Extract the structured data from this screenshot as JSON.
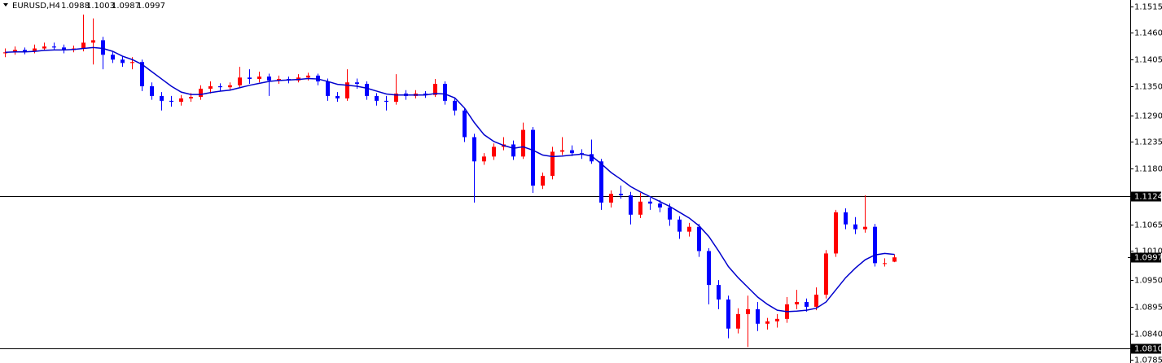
{
  "chart_data": {
    "type": "candlestick",
    "symbol": "EURUSD,H4",
    "ohlc": [
      1.0988,
      1.1003,
      1.0987,
      1.0997
    ],
    "up_color": "#ff0000",
    "down_color": "#0000ff",
    "candles": [
      [
        1.1418,
        1.1428,
        1.141,
        1.142
      ],
      [
        1.142,
        1.1432,
        1.1415,
        1.1425
      ],
      [
        1.1425,
        1.143,
        1.1416,
        1.1422
      ],
      [
        1.1422,
        1.1436,
        1.1418,
        1.1428
      ],
      [
        1.1428,
        1.144,
        1.1424,
        1.1432
      ],
      [
        1.1432,
        1.144,
        1.1424,
        1.143
      ],
      [
        1.143,
        1.1436,
        1.1418,
        1.1425
      ],
      [
        1.1425,
        1.1434,
        1.142,
        1.1428
      ],
      [
        1.1428,
        1.1498,
        1.1422,
        1.144
      ],
      [
        1.144,
        1.149,
        1.1395,
        1.1445
      ],
      [
        1.1445,
        1.1452,
        1.1385,
        1.1415
      ],
      [
        1.1415,
        1.1422,
        1.1398,
        1.1405
      ],
      [
        1.1405,
        1.1412,
        1.139,
        1.1398
      ],
      [
        1.1398,
        1.141,
        1.1385,
        1.14
      ],
      [
        1.14,
        1.1405,
        1.134,
        1.135
      ],
      [
        1.135,
        1.1358,
        1.1322,
        1.133
      ],
      [
        1.133,
        1.1338,
        1.13,
        1.132
      ],
      [
        1.132,
        1.133,
        1.1308,
        1.1318
      ],
      [
        1.1318,
        1.1332,
        1.131,
        1.1325
      ],
      [
        1.1325,
        1.1336,
        1.1318,
        1.1328
      ],
      [
        1.1328,
        1.1352,
        1.1322,
        1.1345
      ],
      [
        1.1345,
        1.136,
        1.1335,
        1.135
      ],
      [
        1.135,
        1.1356,
        1.134,
        1.1348
      ],
      [
        1.1348,
        1.1358,
        1.1342,
        1.1352
      ],
      [
        1.1352,
        1.139,
        1.1346,
        1.1368
      ],
      [
        1.1368,
        1.1385,
        1.1355,
        1.1365
      ],
      [
        1.1365,
        1.138,
        1.1358,
        1.137
      ],
      [
        1.137,
        1.1376,
        1.133,
        1.1362
      ],
      [
        1.1362,
        1.1372,
        1.1355,
        1.1365
      ],
      [
        1.1365,
        1.137,
        1.1356,
        1.1362
      ],
      [
        1.1362,
        1.1375,
        1.1358,
        1.1368
      ],
      [
        1.1368,
        1.1378,
        1.1362,
        1.1372
      ],
      [
        1.1372,
        1.1376,
        1.1352,
        1.136
      ],
      [
        1.136,
        1.1366,
        1.132,
        1.133
      ],
      [
        1.133,
        1.1338,
        1.1318,
        1.1325
      ],
      [
        1.1325,
        1.1385,
        1.132,
        1.1358
      ],
      [
        1.1358,
        1.1366,
        1.1345,
        1.1355
      ],
      [
        1.1355,
        1.136,
        1.1322,
        1.133
      ],
      [
        1.133,
        1.1336,
        1.131,
        1.132
      ],
      [
        1.132,
        1.133,
        1.13,
        1.1318
      ],
      [
        1.1318,
        1.1375,
        1.1312,
        1.1335
      ],
      [
        1.1335,
        1.1342,
        1.1322,
        1.133
      ],
      [
        1.133,
        1.1342,
        1.1325,
        1.1335
      ],
      [
        1.1335,
        1.134,
        1.1326,
        1.1332
      ],
      [
        1.1332,
        1.1365,
        1.1328,
        1.1355
      ],
      [
        1.1355,
        1.136,
        1.1312,
        1.132
      ],
      [
        1.132,
        1.1326,
        1.129,
        1.13
      ],
      [
        1.13,
        1.1306,
        1.1235,
        1.1245
      ],
      [
        1.1245,
        1.1252,
        1.111,
        1.1195
      ],
      [
        1.1195,
        1.1212,
        1.1188,
        1.1205
      ],
      [
        1.1205,
        1.1232,
        1.1198,
        1.1225
      ],
      [
        1.1225,
        1.1245,
        1.1218,
        1.123
      ],
      [
        1.123,
        1.1238,
        1.1198,
        1.1205
      ],
      [
        1.1205,
        1.1275,
        1.12,
        1.126
      ],
      [
        1.126,
        1.1266,
        1.113,
        1.1145
      ],
      [
        1.1145,
        1.1172,
        1.1138,
        1.1165
      ],
      [
        1.1165,
        1.1225,
        1.1158,
        1.1215
      ],
      [
        1.1215,
        1.1245,
        1.1208,
        1.1218
      ],
      [
        1.1218,
        1.1228,
        1.1206,
        1.1212
      ],
      [
        1.1212,
        1.122,
        1.12,
        1.121
      ],
      [
        1.121,
        1.124,
        1.119,
        1.1195
      ],
      [
        1.1195,
        1.12,
        1.1095,
        1.111
      ],
      [
        1.111,
        1.1135,
        1.11,
        1.1128
      ],
      [
        1.1128,
        1.1145,
        1.1118,
        1.1125
      ],
      [
        1.1125,
        1.1132,
        1.1065,
        1.1085
      ],
      [
        1.1085,
        1.113,
        1.1078,
        1.1112
      ],
      [
        1.1112,
        1.112,
        1.1095,
        1.1108
      ],
      [
        1.1108,
        1.1115,
        1.109,
        1.11
      ],
      [
        1.11,
        1.1108,
        1.1062,
        1.1075
      ],
      [
        1.1075,
        1.1082,
        1.1035,
        1.105
      ],
      [
        1.105,
        1.1068,
        1.104,
        1.106
      ],
      [
        1.106,
        1.1066,
        1.0998,
        1.101
      ],
      [
        1.101,
        1.1016,
        1.09,
        1.094
      ],
      [
        1.094,
        1.095,
        1.089,
        1.091
      ],
      [
        1.091,
        1.0918,
        1.083,
        1.085
      ],
      [
        1.085,
        1.0892,
        1.084,
        1.088
      ],
      [
        1.088,
        1.0918,
        1.0812,
        1.089
      ],
      [
        1.089,
        1.0905,
        1.0845,
        1.086
      ],
      [
        1.086,
        1.0872,
        1.0848,
        1.0865
      ],
      [
        1.0865,
        1.088,
        1.0852,
        1.087
      ],
      [
        1.087,
        1.0915,
        1.0862,
        1.09
      ],
      [
        1.09,
        1.093,
        1.089,
        1.0905
      ],
      [
        1.0905,
        1.0912,
        1.0885,
        1.0895
      ],
      [
        1.0895,
        1.0935,
        1.0888,
        1.092
      ],
      [
        1.092,
        1.1012,
        1.0912,
        1.1005
      ],
      [
        1.1005,
        1.1095,
        1.0998,
        1.109
      ],
      [
        1.109,
        1.1098,
        1.1055,
        1.1065
      ],
      [
        1.1065,
        1.108,
        1.1045,
        1.1055
      ],
      [
        1.1055,
        1.1125,
        1.1048,
        1.106
      ],
      [
        1.106,
        1.1066,
        1.0978,
        1.0985
      ],
      [
        1.0985,
        1.0995,
        1.0978,
        1.0985
      ],
      [
        1.0988,
        1.1003,
        1.0987,
        1.0997
      ]
    ],
    "ma": {
      "color": "#0000cd",
      "values": [
        1.142,
        1.1421,
        1.1421,
        1.1422,
        1.1424,
        1.1425,
        1.1425,
        1.1426,
        1.1428,
        1.143,
        1.1428,
        1.1422,
        1.1412,
        1.1405,
        1.1395,
        1.138,
        1.1365,
        1.135,
        1.1338,
        1.1333,
        1.1333,
        1.1337,
        1.134,
        1.1342,
        1.1347,
        1.1352,
        1.1356,
        1.136,
        1.1362,
        1.1363,
        1.1364,
        1.1366,
        1.1365,
        1.136,
        1.1354,
        1.1352,
        1.135,
        1.1346,
        1.134,
        1.1334,
        1.1332,
        1.1332,
        1.1332,
        1.1332,
        1.1335,
        1.1334,
        1.1326,
        1.1305,
        1.1275,
        1.125,
        1.1236,
        1.1228,
        1.1222,
        1.1225,
        1.1218,
        1.1208,
        1.1205,
        1.1206,
        1.1208,
        1.121,
        1.1206,
        1.119,
        1.1172,
        1.1158,
        1.1143,
        1.1132,
        1.1122,
        1.1112,
        1.1102,
        1.109,
        1.1078,
        1.1062,
        1.104,
        1.101,
        1.0978,
        1.0955,
        1.0935,
        1.0915,
        1.09,
        1.0888,
        1.0885,
        1.0886,
        1.0888,
        1.0892,
        1.0905,
        1.093,
        1.0955,
        1.0975,
        1.0992,
        1.1002,
        1.1005,
        1.1003
      ]
    },
    "ylim": [
      1.0779,
      1.1528
    ],
    "yticks": [
      1.1515,
      {
        "value": 1.146,
        "label": "1.1460"
      },
      1.1405,
      {
        "value": 1.135,
        "label": "1.1350"
      },
      {
        "value": 1.129,
        "label": "1.1290"
      },
      1.1235,
      {
        "value": 1.118,
        "label": "1.1180"
      },
      1.1065,
      {
        "value": 1.101,
        "label": "1.1010"
      },
      {
        "value": 1.095,
        "label": "1.0950"
      },
      1.0895,
      {
        "value": 1.084,
        "label": "1.0840"
      },
      1.0785
    ],
    "hlines": [
      1.1124,
      {
        "value": 1.081,
        "label": "1.0810"
      }
    ],
    "current_price": 1.0997
  }
}
